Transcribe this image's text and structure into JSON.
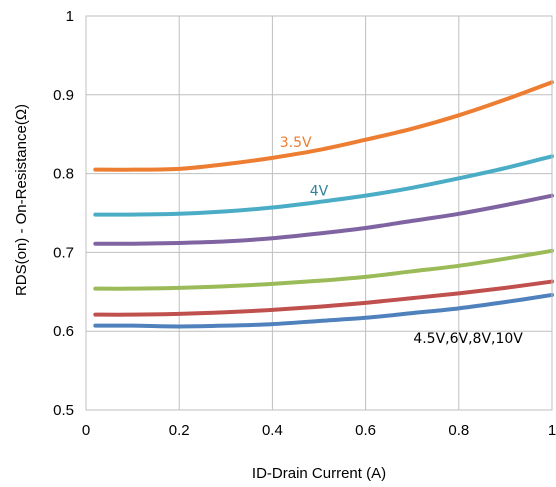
{
  "chart_data": {
    "type": "line",
    "xlabel": "ID-Drain Current (A)",
    "ylabel": "RDS(on) - On-Resistance(Ω)",
    "xlim": [
      0,
      1
    ],
    "ylim": [
      0.5,
      1
    ],
    "x_ticks": [
      "0",
      "0.2",
      "0.4",
      "0.6",
      "0.8",
      "1"
    ],
    "y_ticks": [
      "0.5",
      "0.6",
      "0.7",
      "0.8",
      "0.9",
      "1"
    ],
    "grid": true,
    "x": [
      0.02,
      0.1,
      0.2,
      0.3,
      0.4,
      0.5,
      0.6,
      0.7,
      0.8,
      0.9,
      1.0
    ],
    "series": [
      {
        "color": "#ED7D31",
        "values": [
          0.805,
          0.805,
          0.806,
          0.812,
          0.82,
          0.83,
          0.843,
          0.857,
          0.874,
          0.894,
          0.916
        ]
      },
      {
        "color": "#4BACC6",
        "values": [
          0.748,
          0.748,
          0.749,
          0.752,
          0.757,
          0.764,
          0.772,
          0.782,
          0.794,
          0.807,
          0.822
        ]
      },
      {
        "color": "#8064A2",
        "values": [
          0.711,
          0.711,
          0.712,
          0.714,
          0.718,
          0.724,
          0.731,
          0.74,
          0.749,
          0.76,
          0.772
        ]
      },
      {
        "color": "#9BBB59",
        "values": [
          0.654,
          0.654,
          0.655,
          0.657,
          0.66,
          0.664,
          0.669,
          0.676,
          0.683,
          0.692,
          0.702
        ]
      },
      {
        "color": "#C0504D",
        "values": [
          0.621,
          0.621,
          0.622,
          0.624,
          0.627,
          0.631,
          0.636,
          0.642,
          0.648,
          0.655,
          0.663
        ]
      },
      {
        "color": "#4F81BD",
        "values": [
          0.607,
          0.607,
          0.606,
          0.607,
          0.609,
          0.613,
          0.617,
          0.623,
          0.629,
          0.637,
          0.646
        ]
      }
    ],
    "annotations": [
      {
        "text": "3.5V",
        "color": "#ED7D31",
        "x": 0.45,
        "y": 0.834
      },
      {
        "text": "4V",
        "color": "#31849B",
        "x": 0.5,
        "y": 0.772
      },
      {
        "text": "4.5V,6V,8V,10V",
        "color": "#000000",
        "x": 0.82,
        "y": 0.585
      }
    ]
  }
}
